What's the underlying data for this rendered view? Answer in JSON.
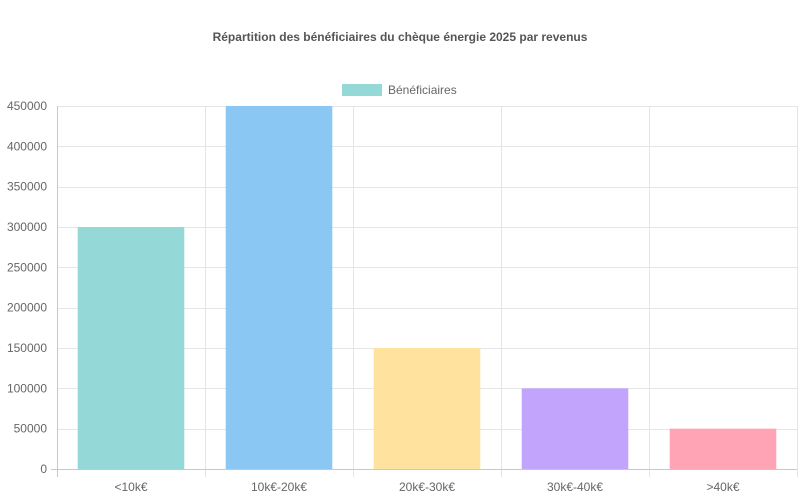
{
  "chart_data": {
    "type": "bar",
    "title": "Répartition des bénéficiaires du chèque énergie 2025 par revenus",
    "categories": [
      "<10k€",
      "10k€-20k€",
      "20k€-30k€",
      "30k€-40k€",
      ">40k€"
    ],
    "series": [
      {
        "name": "Bénéficiaires",
        "values": [
          300000,
          450000,
          150000,
          100000,
          50000
        ],
        "colors": [
          "#94d9d8",
          "#8ac7f3",
          "#fee29e",
          "#c3a4fc",
          "#fea4b5"
        ],
        "legend_color": "#94d9d8"
      }
    ],
    "ylim": [
      0,
      450000
    ],
    "yticks": [
      0,
      50000,
      100000,
      150000,
      200000,
      250000,
      300000,
      350000,
      400000,
      450000
    ],
    "grid": true,
    "legend": "top-center"
  }
}
